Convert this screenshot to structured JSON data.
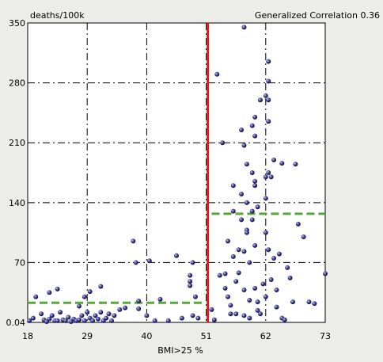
{
  "chart_data": {
    "type": "scatter",
    "title": "Generalized Correlation 0.36",
    "xlabel": "BMI>25 %",
    "ylabel": "deaths/100k",
    "xlim": [
      18,
      73
    ],
    "ylim": [
      0.04,
      350
    ],
    "x_ticks": [
      "18",
      "29",
      "40",
      "51",
      "62",
      "73"
    ],
    "y_ticks": [
      "0.04",
      "70",
      "140",
      "210",
      "280",
      "350"
    ],
    "grid": true,
    "colors": {
      "points": "#3a3a8c",
      "threshold": "#e01818",
      "group_mean": "#58a83a",
      "background": "#ffffff"
    },
    "threshold_x": 51.3,
    "group_means": [
      {
        "x_range": [
          18,
          50.7
        ],
        "y": 23
      },
      {
        "x_range": [
          52,
          73
        ],
        "y": 127
      }
    ],
    "points": [
      [
        18.3,
        2
      ],
      [
        19.0,
        5
      ],
      [
        19.5,
        30
      ],
      [
        20.5,
        10
      ],
      [
        21.0,
        3
      ],
      [
        21.5,
        1
      ],
      [
        22.0,
        4
      ],
      [
        22.0,
        35
      ],
      [
        22.5,
        8
      ],
      [
        23.0,
        2
      ],
      [
        23.5,
        2
      ],
      [
        23.5,
        39
      ],
      [
        24.0,
        12
      ],
      [
        24.5,
        3
      ],
      [
        25.0,
        2
      ],
      [
        25.5,
        6
      ],
      [
        26.0,
        1
      ],
      [
        26.5,
        4
      ],
      [
        27.0,
        2
      ],
      [
        27.5,
        3
      ],
      [
        27.5,
        19
      ],
      [
        28.0,
        8
      ],
      [
        28.5,
        2
      ],
      [
        28.5,
        30
      ],
      [
        29.0,
        12
      ],
      [
        29.5,
        5
      ],
      [
        29.5,
        36
      ],
      [
        30.0,
        2
      ],
      [
        30.5,
        8
      ],
      [
        31.0,
        4
      ],
      [
        31.5,
        12
      ],
      [
        31.5,
        42
      ],
      [
        32.0,
        2
      ],
      [
        32.5,
        5
      ],
      [
        33.0,
        10
      ],
      [
        33.5,
        2
      ],
      [
        34.0,
        8
      ],
      [
        35.0,
        15
      ],
      [
        36.0,
        17
      ],
      [
        37.5,
        95
      ],
      [
        38.0,
        70
      ],
      [
        38.5,
        25
      ],
      [
        38.5,
        16
      ],
      [
        40.0,
        8
      ],
      [
        40.5,
        72
      ],
      [
        41.5,
        2
      ],
      [
        42.5,
        27
      ],
      [
        44.0,
        2
      ],
      [
        45.5,
        78
      ],
      [
        46.5,
        5
      ],
      [
        48.0,
        55
      ],
      [
        48.0,
        48
      ],
      [
        48.0,
        43
      ],
      [
        48.5,
        70
      ],
      [
        48.5,
        8
      ],
      [
        49.0,
        30
      ],
      [
        49.5,
        5
      ],
      [
        52.0,
        15
      ],
      [
        52.5,
        3
      ],
      [
        53.0,
        290
      ],
      [
        53.5,
        55
      ],
      [
        54.0,
        210
      ],
      [
        54.5,
        57
      ],
      [
        54.5,
        40
      ],
      [
        55.0,
        95
      ],
      [
        55.0,
        30
      ],
      [
        55.5,
        20
      ],
      [
        55.5,
        10
      ],
      [
        56.0,
        160
      ],
      [
        56.0,
        130
      ],
      [
        56.0,
        77
      ],
      [
        56.5,
        10
      ],
      [
        56.5,
        48
      ],
      [
        57.0,
        85
      ],
      [
        57.0,
        58
      ],
      [
        57.5,
        225
      ],
      [
        57.5,
        150
      ],
      [
        57.5,
        120
      ],
      [
        58.0,
        345
      ],
      [
        58.0,
        207
      ],
      [
        58.0,
        83
      ],
      [
        58.0,
        38
      ],
      [
        58.0,
        8
      ],
      [
        58.5,
        185
      ],
      [
        58.5,
        140
      ],
      [
        58.5,
        108
      ],
      [
        58.5,
        105
      ],
      [
        59.0,
        70
      ],
      [
        59.0,
        26
      ],
      [
        59.0,
        5
      ],
      [
        59.5,
        230
      ],
      [
        59.5,
        175
      ],
      [
        59.5,
        130
      ],
      [
        59.5,
        120
      ],
      [
        60.0,
        240
      ],
      [
        60.0,
        218
      ],
      [
        60.0,
        165
      ],
      [
        60.0,
        160
      ],
      [
        60.0,
        90
      ],
      [
        60.0,
        40
      ],
      [
        60.5,
        135
      ],
      [
        60.5,
        24
      ],
      [
        60.5,
        14
      ],
      [
        61.0,
        260
      ],
      [
        61.0,
        10
      ],
      [
        61.5,
        45
      ],
      [
        62.0,
        265
      ],
      [
        62.0,
        170
      ],
      [
        62.0,
        145
      ],
      [
        62.0,
        105
      ],
      [
        62.0,
        30
      ],
      [
        62.5,
        305
      ],
      [
        62.5,
        282
      ],
      [
        62.5,
        260
      ],
      [
        62.5,
        235
      ],
      [
        62.5,
        175
      ],
      [
        62.5,
        85
      ],
      [
        63.0,
        170
      ],
      [
        63.0,
        50
      ],
      [
        63.5,
        190
      ],
      [
        63.5,
        75
      ],
      [
        64.0,
        38
      ],
      [
        64.0,
        18
      ],
      [
        64.5,
        80
      ],
      [
        65.0,
        5
      ],
      [
        65.0,
        186
      ],
      [
        65.5,
        3
      ],
      [
        66.0,
        64
      ],
      [
        66.5,
        52
      ],
      [
        67.0,
        24
      ],
      [
        67.5,
        185
      ],
      [
        68.0,
        115
      ],
      [
        69.0,
        100
      ],
      [
        70.0,
        24
      ],
      [
        71.0,
        22
      ],
      [
        73.0,
        57
      ]
    ]
  }
}
